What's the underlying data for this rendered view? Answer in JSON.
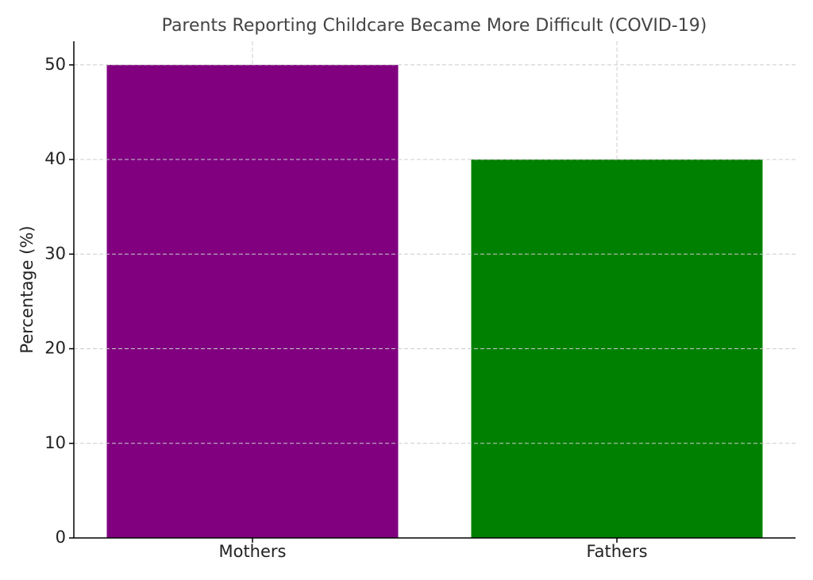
{
  "chart_data": {
    "type": "bar",
    "title": "Parents Reporting Childcare Became More Difficult (COVID-19)",
    "ylabel": "Percentage (%)",
    "categories": [
      "Mothers",
      "Fathers"
    ],
    "values": [
      50,
      40
    ],
    "colors": [
      "#800080",
      "#008000"
    ],
    "ylim": [
      0,
      52.5
    ],
    "yticks": [
      0,
      10,
      20,
      30,
      40,
      50
    ],
    "grid": true
  }
}
